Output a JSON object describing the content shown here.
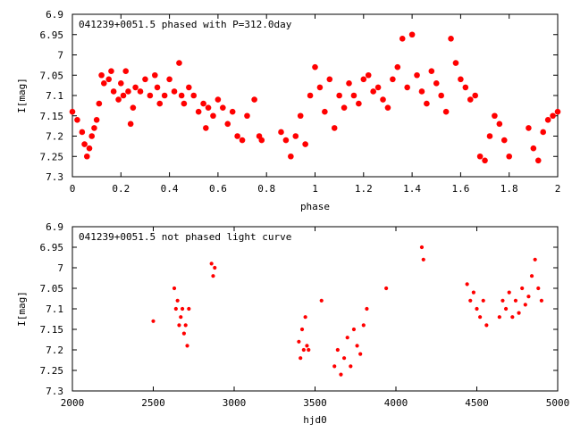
{
  "chart_data": [
    {
      "type": "scatter",
      "title": "041239+0051.5 phased with P=312.0day",
      "xlabel": "phase",
      "ylabel": "I[mag]",
      "xlim": [
        0,
        2
      ],
      "ylim": [
        6.9,
        7.3
      ],
      "y_inverted": true,
      "xticks": [
        0,
        0.2,
        0.4,
        0.6,
        0.8,
        1,
        1.2,
        1.4,
        1.6,
        1.8,
        2
      ],
      "xtick_labels": [
        "0",
        "0.2",
        "0.4",
        "0.6",
        "0.8",
        "1",
        "1.2",
        "1.4",
        "1.6",
        "1.8",
        "2"
      ],
      "yticks": [
        6.9,
        6.95,
        7.0,
        7.05,
        7.1,
        7.15,
        7.2,
        7.25,
        7.3
      ],
      "ytick_labels": [
        "6.9",
        "6.95",
        "7",
        "7.05",
        "7.1",
        "7.15",
        "7.2",
        "7.25",
        "7.3"
      ],
      "grid": false,
      "marker_color": "#ff0000",
      "marker": "large-dot",
      "series": [
        {
          "x": [
            0.0,
            0.02,
            0.04,
            0.05,
            0.06,
            0.07,
            0.08,
            0.09,
            0.1,
            0.11,
            0.12,
            0.13,
            0.15,
            0.16,
            0.17,
            0.19,
            0.2,
            0.21,
            0.22,
            0.23,
            0.24,
            0.25,
            0.26,
            0.28,
            0.3,
            0.32,
            0.34,
            0.35,
            0.36,
            0.38,
            0.4,
            0.42,
            0.44,
            0.45,
            0.46,
            0.48,
            0.5,
            0.52,
            0.54,
            0.55,
            0.56,
            0.58,
            0.6,
            0.62,
            0.64,
            0.66,
            0.68,
            0.7,
            0.72,
            0.75,
            0.77,
            0.78,
            0.86,
            0.88,
            0.9,
            0.92,
            0.94,
            0.96,
            0.98,
            1.0,
            1.02,
            1.04,
            1.06,
            1.08,
            1.1,
            1.12,
            1.14,
            1.16,
            1.18,
            1.2,
            1.22,
            1.24,
            1.26,
            1.28,
            1.3,
            1.32,
            1.34,
            1.36,
            1.38,
            1.4,
            1.42,
            1.44,
            1.46,
            1.48,
            1.5,
            1.52,
            1.54,
            1.56,
            1.58,
            1.6,
            1.62,
            1.64,
            1.66,
            1.68,
            1.7,
            1.72,
            1.74,
            1.76,
            1.78,
            1.8,
            1.88,
            1.9,
            1.92,
            1.94,
            1.96,
            1.98,
            2.0
          ],
          "y": [
            7.14,
            7.16,
            7.19,
            7.22,
            7.25,
            7.23,
            7.2,
            7.18,
            7.16,
            7.12,
            7.05,
            7.07,
            7.06,
            7.04,
            7.09,
            7.11,
            7.07,
            7.1,
            7.04,
            7.09,
            7.17,
            7.13,
            7.08,
            7.09,
            7.06,
            7.1,
            7.05,
            7.08,
            7.12,
            7.1,
            7.06,
            7.09,
            7.02,
            7.1,
            7.12,
            7.08,
            7.1,
            7.14,
            7.12,
            7.18,
            7.13,
            7.15,
            7.11,
            7.13,
            7.17,
            7.14,
            7.2,
            7.21,
            7.15,
            7.11,
            7.2,
            7.21,
            7.19,
            7.21,
            7.25,
            7.2,
            7.15,
            7.22,
            7.1,
            7.03,
            7.08,
            7.14,
            7.06,
            7.18,
            7.1,
            7.13,
            7.07,
            7.1,
            7.12,
            7.06,
            7.05,
            7.09,
            7.08,
            7.11,
            7.13,
            7.06,
            7.03,
            6.96,
            7.08,
            6.95,
            7.05,
            7.09,
            7.12,
            7.04,
            7.07,
            7.1,
            7.14,
            6.96,
            7.02,
            7.06,
            7.08,
            7.11,
            7.1,
            7.25,
            7.26,
            7.2,
            7.15,
            7.17,
            7.21,
            7.25,
            7.18,
            7.23,
            7.26,
            7.19,
            7.16,
            7.15,
            7.14
          ]
        }
      ]
    },
    {
      "type": "scatter",
      "title": "041239+0051.5 not phased light curve",
      "xlabel": "hjd0",
      "ylabel": "I[mag]",
      "xlim": [
        2000,
        5000
      ],
      "ylim": [
        6.9,
        7.3
      ],
      "y_inverted": true,
      "xticks": [
        2000,
        2500,
        3000,
        3500,
        4000,
        4500,
        5000
      ],
      "xtick_labels": [
        "2000",
        "2500",
        "3000",
        "3500",
        "4000",
        "4500",
        "5000"
      ],
      "yticks": [
        6.9,
        6.95,
        7.0,
        7.05,
        7.1,
        7.15,
        7.2,
        7.25,
        7.3
      ],
      "ytick_labels": [
        "6.9",
        "6.95",
        "7",
        "7.05",
        "7.1",
        "7.15",
        "7.2",
        "7.25",
        "7.3"
      ],
      "grid": false,
      "marker_color": "#ff0000",
      "marker": "small-dot",
      "series": [
        {
          "x": [
            2500,
            2630,
            2640,
            2650,
            2660,
            2670,
            2680,
            2690,
            2700,
            2710,
            2720,
            2860,
            2870,
            2880,
            3400,
            3410,
            3420,
            3430,
            3440,
            3450,
            3460,
            3540,
            3620,
            3640,
            3660,
            3680,
            3700,
            3720,
            3740,
            3760,
            3780,
            3800,
            3820,
            3940,
            4160,
            4170,
            4440,
            4460,
            4480,
            4500,
            4520,
            4540,
            4560,
            4640,
            4660,
            4680,
            4700,
            4720,
            4740,
            4760,
            4780,
            4800,
            4820,
            4840,
            4860,
            4880,
            4900
          ],
          "y": [
            7.13,
            7.05,
            7.1,
            7.08,
            7.14,
            7.12,
            7.1,
            7.16,
            7.14,
            7.19,
            7.1,
            6.99,
            7.02,
            7.0,
            7.18,
            7.22,
            7.15,
            7.2,
            7.12,
            7.19,
            7.2,
            7.08,
            7.24,
            7.2,
            7.26,
            7.22,
            7.17,
            7.24,
            7.15,
            7.19,
            7.21,
            7.14,
            7.1,
            7.05,
            6.95,
            6.98,
            7.04,
            7.08,
            7.06,
            7.1,
            7.12,
            7.08,
            7.14,
            7.12,
            7.08,
            7.1,
            7.06,
            7.12,
            7.08,
            7.11,
            7.05,
            7.09,
            7.07,
            7.02,
            6.98,
            7.05,
            7.08
          ]
        }
      ]
    }
  ]
}
